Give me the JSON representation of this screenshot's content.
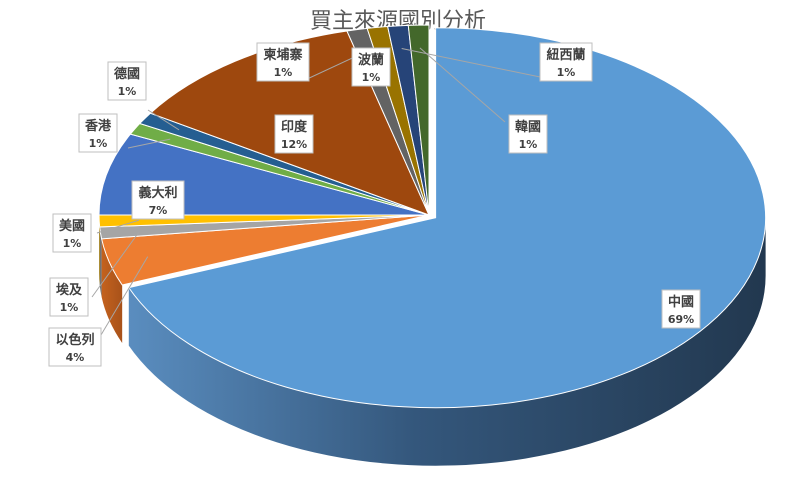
{
  "chart_data": {
    "type": "pie",
    "title": "買主來源國別分析",
    "categories": [
      "中國",
      "以色列",
      "埃及",
      "美國",
      "義大利",
      "香港",
      "德國",
      "印度",
      "柬埔寨",
      "波蘭",
      "紐西蘭",
      "韓國"
    ],
    "values": [
      69,
      4,
      1,
      1,
      7,
      1,
      1,
      12,
      1,
      1,
      1,
      1
    ],
    "value_labels": [
      "69%",
      "4%",
      "1%",
      "1%",
      "7%",
      "1%",
      "1%",
      "12%",
      "1%",
      "1%",
      "1%",
      "1%"
    ],
    "colors": [
      "#5b9bd5",
      "#ed7d31",
      "#a5a5a5",
      "#ffc000",
      "#4472c4",
      "#70ad47",
      "#255e91",
      "#9e480e",
      "#636363",
      "#997300",
      "#264478",
      "#43682b"
    ],
    "style": "3d",
    "legend": "none",
    "data_labels": "callouts"
  }
}
